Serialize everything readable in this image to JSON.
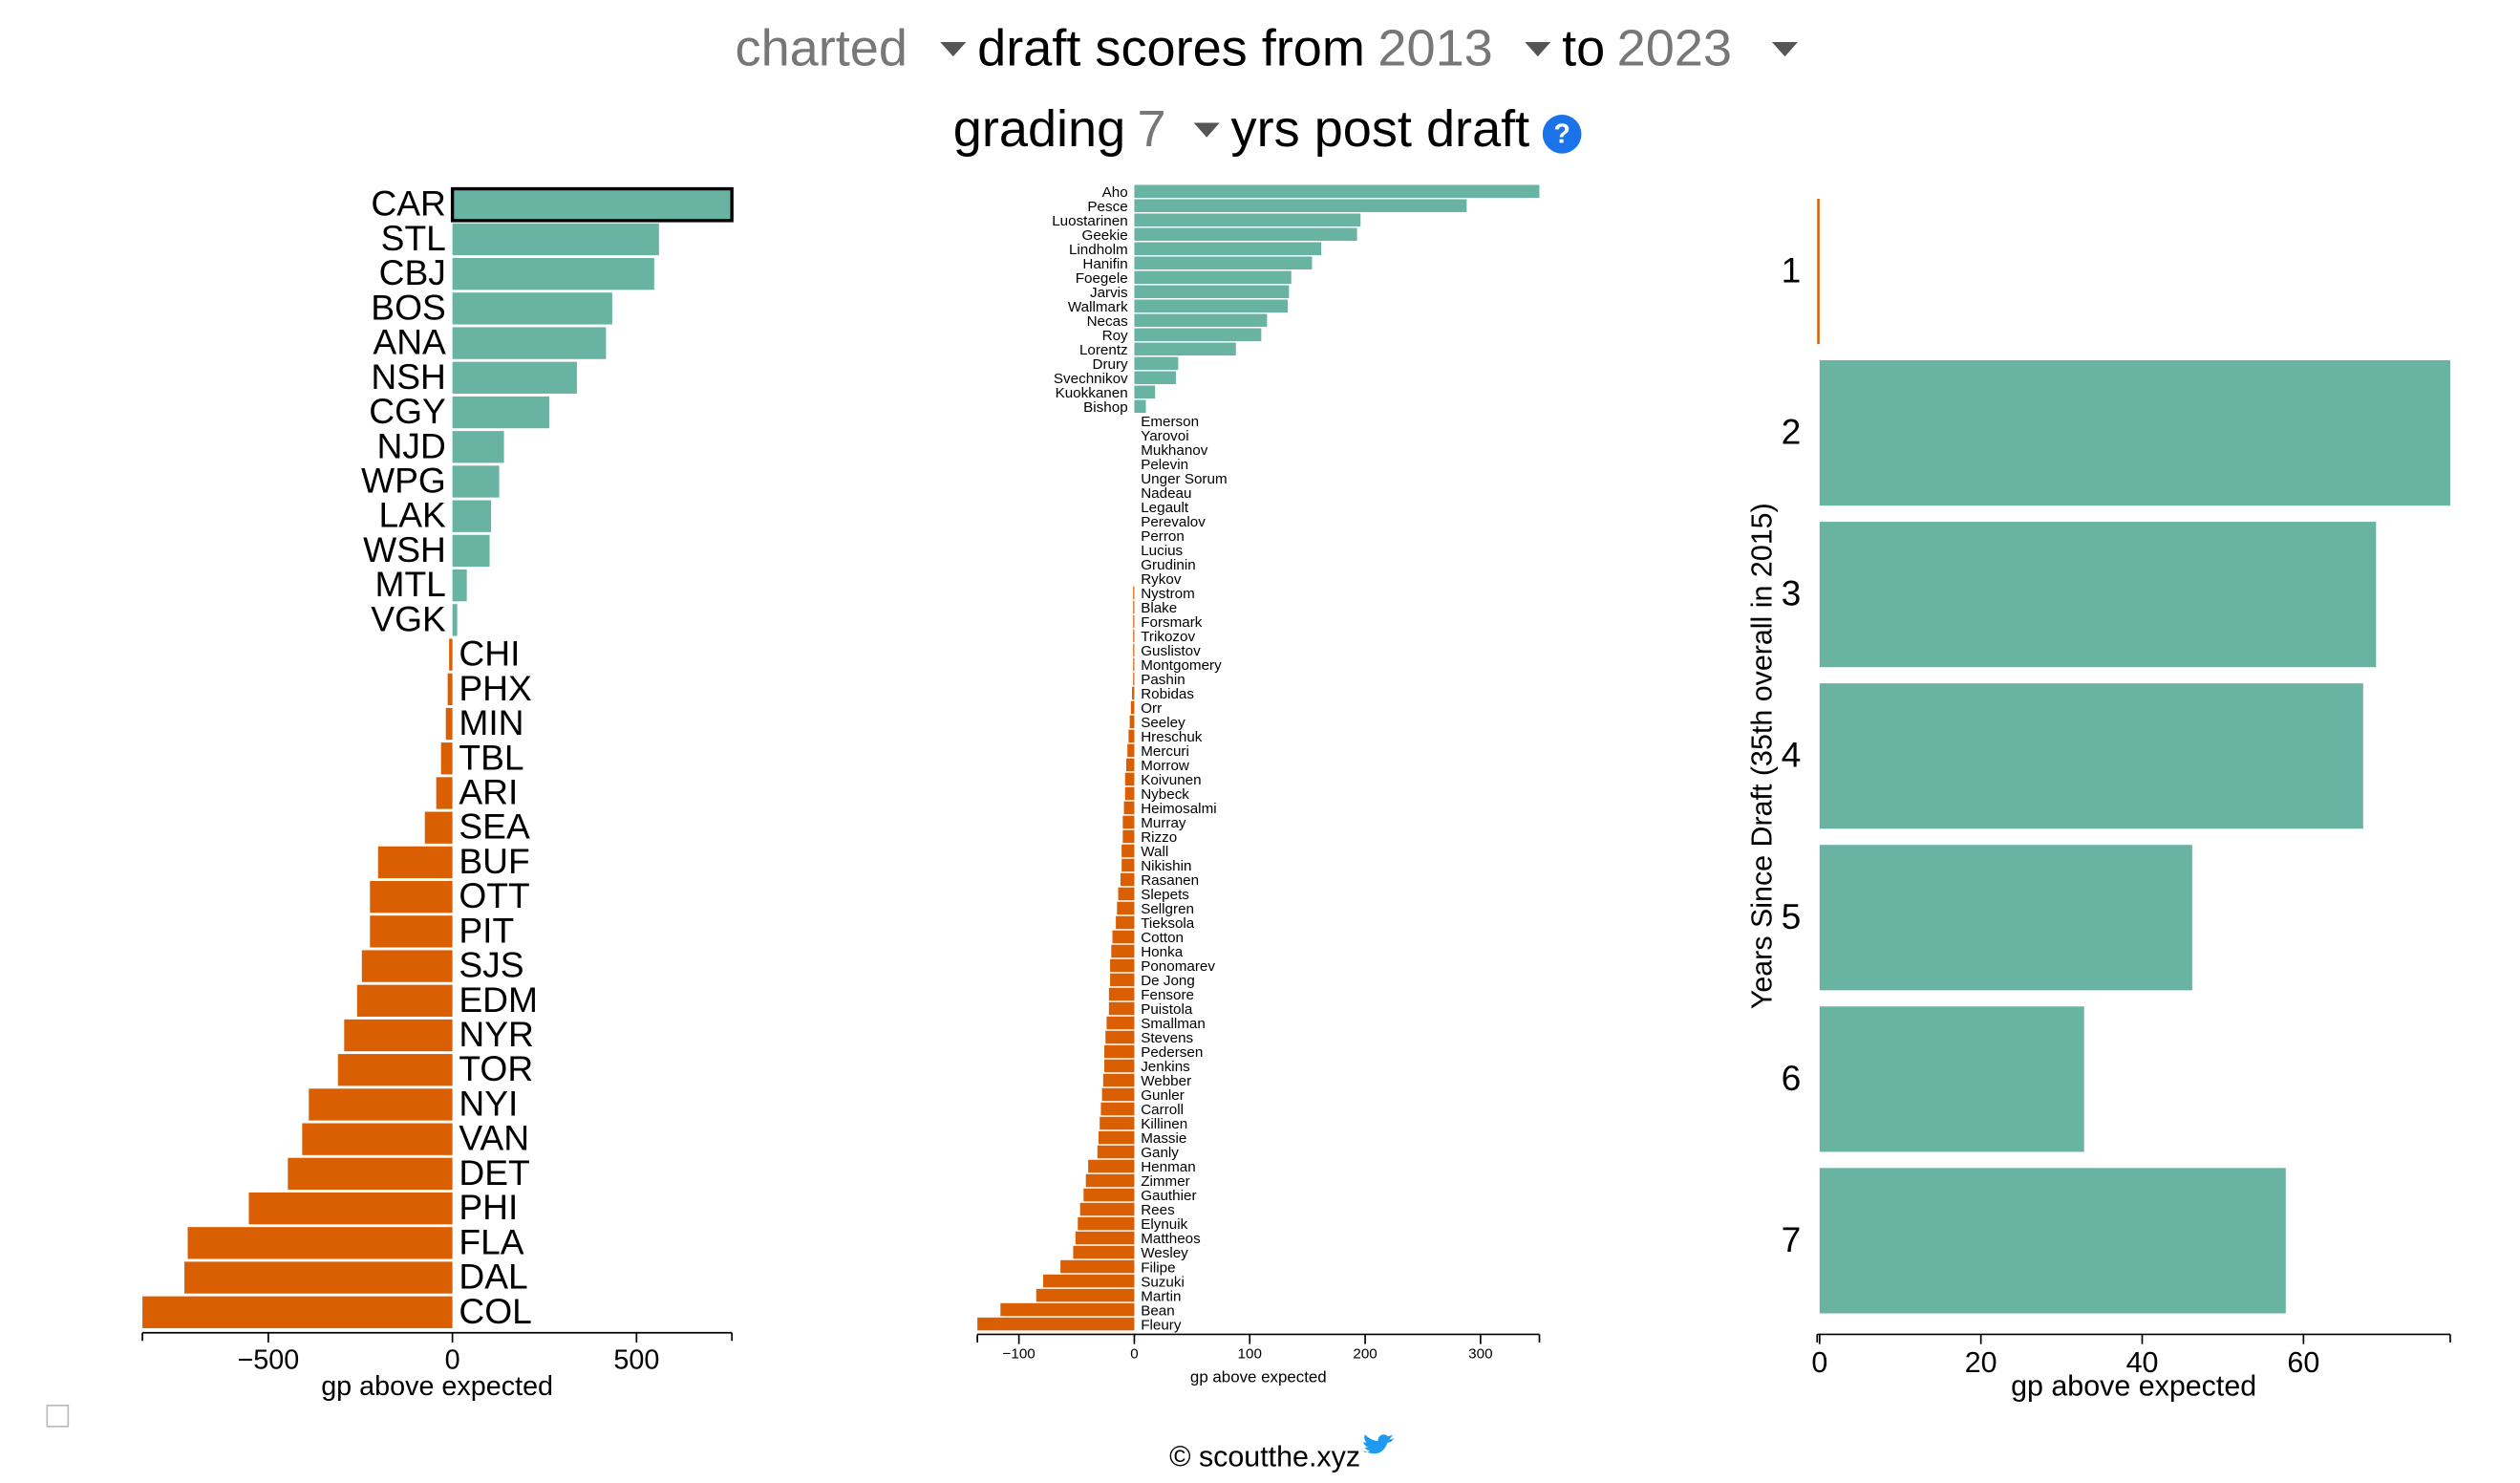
{
  "header": {
    "metric": "charted",
    "from_label": "draft scores from",
    "start_year": "2013",
    "to_label": "to",
    "end_year": "2023",
    "grading_label": "grading",
    "years": "7",
    "post_label": "yrs post draft",
    "help": "?"
  },
  "footer": "© scoutthe.xyz",
  "chart_data": [
    {
      "type": "bar",
      "orientation": "horizontal",
      "xlabel": "gp above expected",
      "categories": [
        "CAR",
        "STL",
        "CBJ",
        "BOS",
        "ANA",
        "NSH",
        "CGY",
        "NJD",
        "WPG",
        "LAK",
        "WSH",
        "MTL",
        "VGK",
        "CHI",
        "PHX",
        "MIN",
        "TBL",
        "ARI",
        "SEA",
        "BUF",
        "OTT",
        "PIT",
        "SJS",
        "EDM",
        "NYR",
        "TOR",
        "NYI",
        "VAN",
        "DET",
        "PHI",
        "FLA",
        "DAL",
        "COL"
      ],
      "values": [
        759,
        561,
        548,
        434,
        417,
        338,
        263,
        140,
        127,
        105,
        101,
        39,
        13,
        -9,
        -13,
        -18,
        -31,
        -44,
        -75,
        -202,
        -224,
        -224,
        -246,
        -259,
        -294,
        -311,
        -390,
        -408,
        -447,
        -553,
        -719,
        -728,
        -842
      ],
      "highlight": "CAR",
      "colors": {
        "positive": "#69b3a2",
        "negative": "#d95f02"
      },
      "xlim": [
        -842,
        759
      ],
      "xticks": [
        {
          "value": -500,
          "label": "−500"
        },
        0,
        500
      ]
    },
    {
      "type": "bar",
      "orientation": "horizontal",
      "xlabel": "gp above expected",
      "categories": [
        "Aho",
        "Pesce",
        "Luostarinen",
        "Geekie",
        "Lindholm",
        "Hanifin",
        "Foegele",
        "Jarvis",
        "Wallmark",
        "Necas",
        "Roy",
        "Lorentz",
        "Drury",
        "Svechnikov",
        "Kuokkanen",
        "Bishop",
        "Emerson",
        "Yarovoi",
        "Mukhanov",
        "Pelevin",
        "Unger Sorum",
        "Nadeau",
        "Legault",
        "Perevalov",
        "Perron",
        "Lucius",
        "Grudinin",
        "Rykov",
        "Nystrom",
        "Blake",
        "Forsmark",
        "Trikozov",
        "Guslistov",
        "Montgomery",
        "Pashin",
        "Robidas",
        "Orr",
        "Seeley",
        "Hreschuk",
        "Mercuri",
        "Morrow",
        "Koivunen",
        "Nybeck",
        "Heimosalmi",
        "Murray",
        "Rizzo",
        "Wall",
        "Nikishin",
        "Rasanen",
        "Slepets",
        "Sellgren",
        "Tieksola",
        "Cotton",
        "Honka",
        "Ponomarev",
        "De Jong",
        "Fensore",
        "Puistola",
        "Smallman",
        "Stevens",
        "Pedersen",
        "Jenkins",
        "Webber",
        "Gunler",
        "Carroll",
        "Killinen",
        "Massie",
        "Ganly",
        "Henman",
        "Zimmer",
        "Gauthier",
        "Rees",
        "Elynuik",
        "Mattheos",
        "Wesley",
        "Filipe",
        "Suzuki",
        "Martin",
        "Bean",
        "Fleury"
      ],
      "values": [
        351,
        288,
        196,
        193,
        162,
        154,
        136,
        134,
        133,
        115,
        110,
        88,
        38,
        36,
        18,
        10,
        0,
        0,
        0,
        0,
        0,
        0,
        0,
        0,
        0,
        0,
        0,
        0,
        -1,
        -1,
        -1,
        -1,
        -1,
        -1,
        -1,
        -2,
        -3,
        -4,
        -5,
        -6,
        -7,
        -8,
        -8,
        -9,
        -10,
        -10,
        -11,
        -11,
        -12,
        -14,
        -15,
        -16,
        -19,
        -20,
        -21,
        -21,
        -22,
        -22,
        -24,
        -25,
        -26,
        -26,
        -27,
        -28,
        -29,
        -30,
        -31,
        -32,
        -40,
        -42,
        -44,
        -47,
        -49,
        -51,
        -53,
        -64,
        -79,
        -85,
        -116,
        -136
      ],
      "colors": {
        "positive": "#69b3a2",
        "negative": "#d95f02"
      },
      "xlim": [
        -136,
        351
      ],
      "xticks": [
        {
          "value": -100,
          "label": "−100"
        },
        0,
        100,
        200,
        300
      ]
    },
    {
      "type": "bar",
      "orientation": "horizontal",
      "xlabel": "gp above expected",
      "ylabel": "Years Since Draft (35th overall in 2015)",
      "categories": [
        "1",
        "2",
        "3",
        "4",
        "5",
        "6",
        "7"
      ],
      "values": [
        -0.3,
        78.2,
        69,
        67.4,
        46.2,
        32.8,
        57.8
      ],
      "colors": {
        "positive": "#69b3a2",
        "negative": "#d95f02"
      },
      "xlim": [
        -0.3,
        78.2
      ],
      "xticks": [
        0,
        20,
        40,
        60
      ]
    }
  ]
}
